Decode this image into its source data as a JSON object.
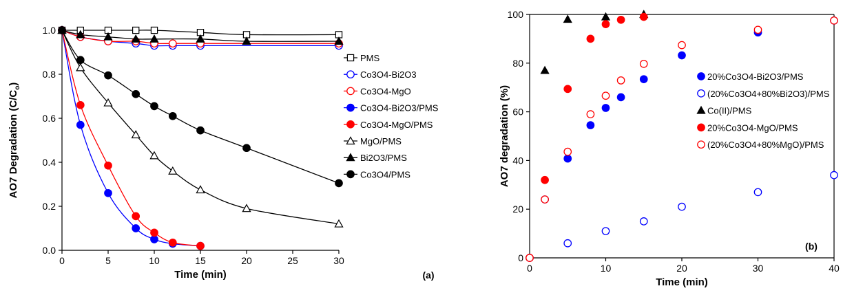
{
  "chart_data": [
    {
      "type": "line",
      "panel_label": "(a)",
      "xlabel": "Time (min)",
      "ylabel": "AO7 Degradation (C/C",
      "ylabel_sub": "o",
      "ylabel_close": ")",
      "xlim": [
        0,
        30
      ],
      "ylim": [
        0,
        1.0
      ],
      "xticks": [
        "0",
        "5",
        "10",
        "15",
        "20",
        "25",
        "30"
      ],
      "yticks": [
        "0.0",
        "0.2",
        "0.4",
        "0.6",
        "0.8",
        "1.0"
      ],
      "legend_position": "right",
      "series": [
        {
          "name": "PMS",
          "marker": "square-open",
          "color": "#000000",
          "x": [
            0,
            2,
            5,
            8,
            10,
            15,
            20,
            30
          ],
          "y": [
            1.0,
            1.0,
            1.0,
            1.0,
            1.0,
            0.99,
            0.98,
            0.98
          ]
        },
        {
          "name": "Co3O4-Bi2O3",
          "marker": "circle-open",
          "color": "#0000ff",
          "x": [
            0,
            2,
            5,
            8,
            10,
            12,
            15,
            30
          ],
          "y": [
            1.0,
            0.97,
            0.95,
            0.94,
            0.93,
            0.93,
            0.93,
            0.93
          ]
        },
        {
          "name": "Co3O4-MgO",
          "marker": "circle-open",
          "color": "#ff0000",
          "x": [
            0,
            2,
            5,
            8,
            10,
            12,
            15,
            30
          ],
          "y": [
            1.0,
            0.97,
            0.95,
            0.95,
            0.94,
            0.94,
            0.94,
            0.94
          ]
        },
        {
          "name": "Co3O4-Bi2O3/PMS",
          "marker": "circle-filled",
          "color": "#0000ff",
          "x": [
            0,
            2,
            5,
            8,
            10,
            12,
            15
          ],
          "y": [
            1.0,
            0.57,
            0.26,
            0.1,
            0.05,
            0.03,
            0.02
          ]
        },
        {
          "name": "Co3O4-MgO/PMS",
          "marker": "circle-filled",
          "color": "#ff0000",
          "x": [
            0,
            2,
            5,
            8,
            10,
            12,
            15
          ],
          "y": [
            1.0,
            0.66,
            0.385,
            0.155,
            0.08,
            0.035,
            0.02
          ]
        },
        {
          "name": "MgO/PMS",
          "marker": "triangle-open",
          "color": "#000000",
          "x": [
            0,
            2,
            5,
            8,
            10,
            12,
            15,
            20,
            30
          ],
          "y": [
            1.0,
            0.83,
            0.67,
            0.525,
            0.43,
            0.36,
            0.275,
            0.19,
            0.12
          ]
        },
        {
          "name": "Bi2O3/PMS",
          "marker": "triangle-filled",
          "color": "#000000",
          "x": [
            0,
            2,
            5,
            8,
            10,
            15,
            20,
            30
          ],
          "y": [
            1.0,
            0.98,
            0.97,
            0.96,
            0.96,
            0.96,
            0.95,
            0.95
          ]
        },
        {
          "name": "Co3O4/PMS",
          "marker": "circle-filled",
          "color": "#000000",
          "x": [
            0,
            2,
            5,
            8,
            10,
            12,
            15,
            20,
            30
          ],
          "y": [
            1.0,
            0.865,
            0.795,
            0.71,
            0.655,
            0.61,
            0.545,
            0.465,
            0.305
          ]
        }
      ]
    },
    {
      "type": "scatter",
      "panel_label": "(b)",
      "xlabel": "Time (min)",
      "ylabel": "AO7 degradation (%)",
      "xlim": [
        0,
        40
      ],
      "ylim": [
        0,
        100
      ],
      "xticks": [
        "0",
        "10",
        "20",
        "30",
        "40"
      ],
      "yticks": [
        "0",
        "20",
        "40",
        "60",
        "80",
        "100"
      ],
      "legend_position": "right",
      "series": [
        {
          "name": "20%Co3O4-Bi2O3/PMS",
          "marker": "circle-filled",
          "color": "#0000ff",
          "x": [
            0,
            2,
            5,
            8,
            10,
            12,
            15,
            20,
            30,
            40
          ],
          "y": [
            0,
            24,
            40.8,
            54.5,
            61.6,
            66,
            73.4,
            83.2,
            92.6,
            97.5
          ]
        },
        {
          "name": "(20%Co3O4+80%Bi2O3)/PMS",
          "marker": "circle-open",
          "color": "#0000ff",
          "x": [
            0,
            5,
            10,
            15,
            20,
            30,
            40
          ],
          "y": [
            0,
            6,
            11,
            15,
            21,
            27,
            34
          ]
        },
        {
          "name": "Co(II)/PMS",
          "marker": "triangle-filled",
          "color": "#000000",
          "x": [
            2,
            5,
            10,
            15
          ],
          "y": [
            77,
            98,
            99,
            100
          ]
        },
        {
          "name": "20%Co3O4-MgO/PMS",
          "marker": "circle-filled",
          "color": "#ff0000",
          "x": [
            0,
            2,
            5,
            8,
            10,
            12,
            15
          ],
          "y": [
            0,
            32,
            69.4,
            90,
            96,
            97.8,
            99
          ]
        },
        {
          "name": "(20%Co3O4+80%MgO)/PMS",
          "marker": "circle-open",
          "color": "#ff0000",
          "x": [
            0,
            2,
            5,
            8,
            10,
            12,
            15,
            20,
            30,
            40
          ],
          "y": [
            0,
            24,
            43.6,
            59,
            66.6,
            72.9,
            79.7,
            87.4,
            93.7,
            97.5
          ]
        }
      ]
    }
  ]
}
